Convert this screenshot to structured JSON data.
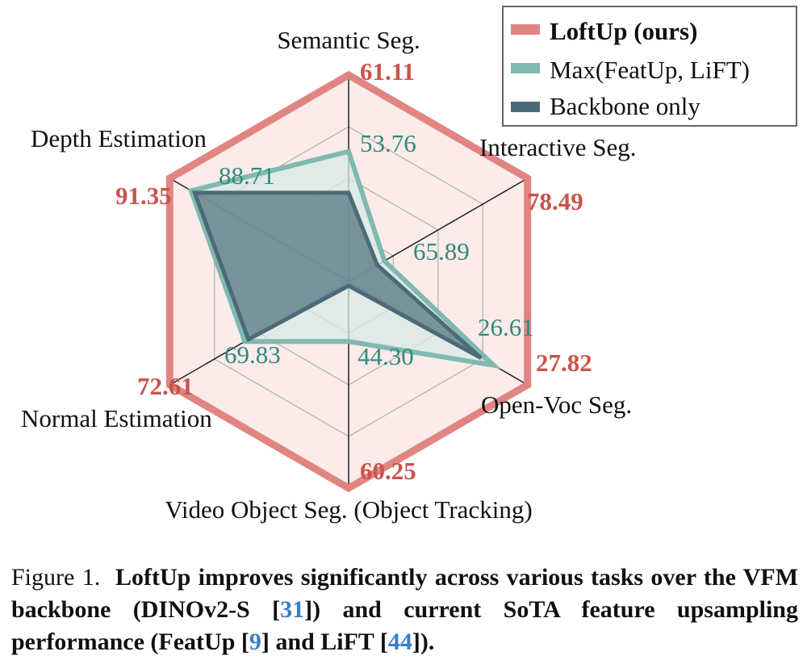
{
  "chart_data": {
    "type": "radar",
    "axes": [
      "Semantic Seg.",
      "Interactive Seg.",
      "Open-Voc Seg.",
      "Video Object Seg. (Object Tracking)",
      "Normal Estimation",
      "Depth Estimation"
    ],
    "series": [
      {
        "name": "LoftUp (ours)",
        "color": "#e08582",
        "fill": "#fbebe9",
        "label_color": "#c9544c",
        "values": [
          1.0,
          1.0,
          1.0,
          1.0,
          1.0,
          1.0
        ],
        "labels": [
          "61.11",
          "78.49",
          "27.82",
          "60.25",
          "72.61",
          "91.35"
        ]
      },
      {
        "name": "Max(FeatUp, LiFT)",
        "color": "#7fb9b0",
        "fill": "#d7eae5",
        "label_color": "#2e8a7e",
        "values": [
          0.63,
          0.2,
          0.81,
          0.29,
          0.58,
          0.88
        ],
        "labels": [
          "53.76",
          "65.89",
          "26.61",
          "44.30",
          "69.83",
          "88.71"
        ]
      },
      {
        "name": "Backbone only",
        "color": "#4c6a78",
        "fill": "#5f7d87",
        "values": [
          0.43,
          0.16,
          0.74,
          0.02,
          0.56,
          0.86
        ]
      }
    ],
    "rmax": 1.0,
    "rings": [
      0.25,
      0.5,
      0.75,
      1.0
    ],
    "legend_position": "top-right"
  },
  "caption": {
    "label": "Figure 1.",
    "t1": "LoftUp improves significantly across various tasks over the VFM backbone (DINOv2-S [",
    "r1": "31",
    "t2": "]) and current SoTA feature upsampling performance (FeatUp [",
    "r2": "9",
    "t3": "] and LiFT [",
    "r3": "44",
    "t4": "])."
  }
}
